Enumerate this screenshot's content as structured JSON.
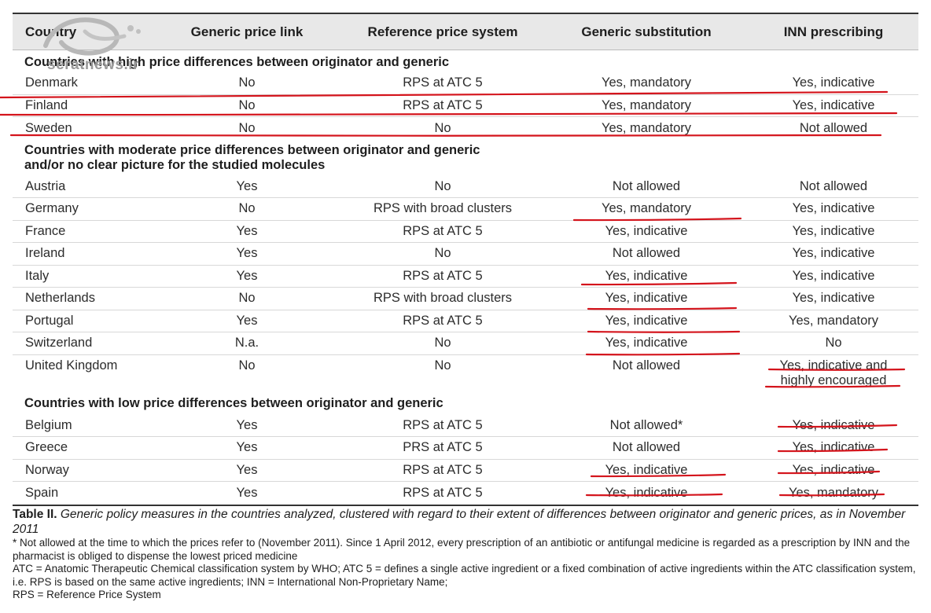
{
  "table": {
    "headers": [
      "Country",
      "Generic price link",
      "Reference price system",
      "Generic substitution",
      "INN prescribing"
    ],
    "sections": [
      {
        "title_lines": [
          "Countries with high price differences between originator and generic"
        ],
        "rows": [
          {
            "cells": [
              "Denmark",
              "No",
              "RPS at ATC 5",
              "Yes, mandatory"
            ],
            "inn": [
              "Yes, indicative"
            ]
          },
          {
            "cells": [
              "Finland",
              "No",
              "RPS at ATC 5",
              "Yes, mandatory"
            ],
            "inn": [
              "Yes, indicative"
            ]
          },
          {
            "cells": [
              "Sweden",
              "No",
              "No",
              "Yes, mandatory"
            ],
            "inn": [
              "Not allowed"
            ]
          }
        ]
      },
      {
        "title_lines": [
          "Countries with moderate price differences between originator and generic",
          "and/or no clear picture for the studied molecules"
        ],
        "rows": [
          {
            "cells": [
              "Austria",
              "Yes",
              "No",
              "Not allowed"
            ],
            "inn": [
              "Not allowed"
            ]
          },
          {
            "cells": [
              "Germany",
              "No",
              "RPS with broad clusters",
              "Yes, mandatory"
            ],
            "inn": [
              "Yes, indicative"
            ]
          },
          {
            "cells": [
              "France",
              "Yes",
              "RPS at ATC 5",
              "Yes, indicative"
            ],
            "inn": [
              "Yes, indicative"
            ]
          },
          {
            "cells": [
              "Ireland",
              "Yes",
              "No",
              "Not allowed"
            ],
            "inn": [
              "Yes, indicative"
            ]
          },
          {
            "cells": [
              "Italy",
              "Yes",
              "RPS at ATC 5",
              "Yes, indicative"
            ],
            "inn": [
              "Yes, indicative"
            ]
          },
          {
            "cells": [
              "Netherlands",
              "No",
              "RPS with broad clusters",
              "Yes, indicative"
            ],
            "inn": [
              "Yes, indicative"
            ]
          },
          {
            "cells": [
              "Portugal",
              "Yes",
              "RPS at ATC 5",
              "Yes, indicative"
            ],
            "inn": [
              "Yes, mandatory"
            ]
          },
          {
            "cells": [
              "Switzerland",
              "N.a.",
              "No",
              "Yes, indicative"
            ],
            "inn": [
              "No"
            ]
          },
          {
            "cells": [
              "United Kingdom",
              "No",
              "No",
              "Not allowed"
            ],
            "inn": [
              "Yes, indicative and",
              "highly encouraged"
            ]
          }
        ]
      },
      {
        "title_lines": [
          "Countries with low price differences between originator and generic"
        ],
        "rows": [
          {
            "cells": [
              "Belgium",
              "Yes",
              "RPS at ATC 5",
              "Not allowed*"
            ],
            "inn": [
              "Yes, indicative"
            ]
          },
          {
            "cells": [
              "Greece",
              "Yes",
              "PRS at ATC 5",
              "Not allowed"
            ],
            "inn": [
              "Yes, indicative"
            ]
          },
          {
            "cells": [
              "Norway",
              "Yes",
              "RPS at ATC 5",
              "Yes, indicative"
            ],
            "inn": [
              "Yes, indicative"
            ]
          },
          {
            "cells": [
              "Spain",
              "Yes",
              "RPS at ATC 5",
              "Yes, indicative"
            ],
            "inn": [
              "Yes, mandatory"
            ]
          }
        ]
      }
    ]
  },
  "caption": {
    "label": "Table II.",
    "text": "Generic policy measures in the countries analyzed, clustered with regard to their extent of differences between originator and generic prices, as in November 2011"
  },
  "notes": [
    "* Not allowed at the time to which the prices refer to (November 2011). Since 1 April 2012, every prescription of an antibiotic or antifungal medicine is regarded as a prescription by INN and the pharmacist is obliged to dispense the lowest priced medicine",
    "ATC = Anatomic Therapeutic Chemical classification system by WHO; ATC 5 = defines a single active ingredient or a fixed combination of active ingredients within the ATC classification system, i.e. RPS is based on the same active ingredients; INN = International Non-Proprietary Name;",
    "RPS = Reference Price System"
  ],
  "watermark": {
    "text": "seratnews.ir",
    "color": "#9a9a9a"
  },
  "annotation_color": "#d4141c"
}
